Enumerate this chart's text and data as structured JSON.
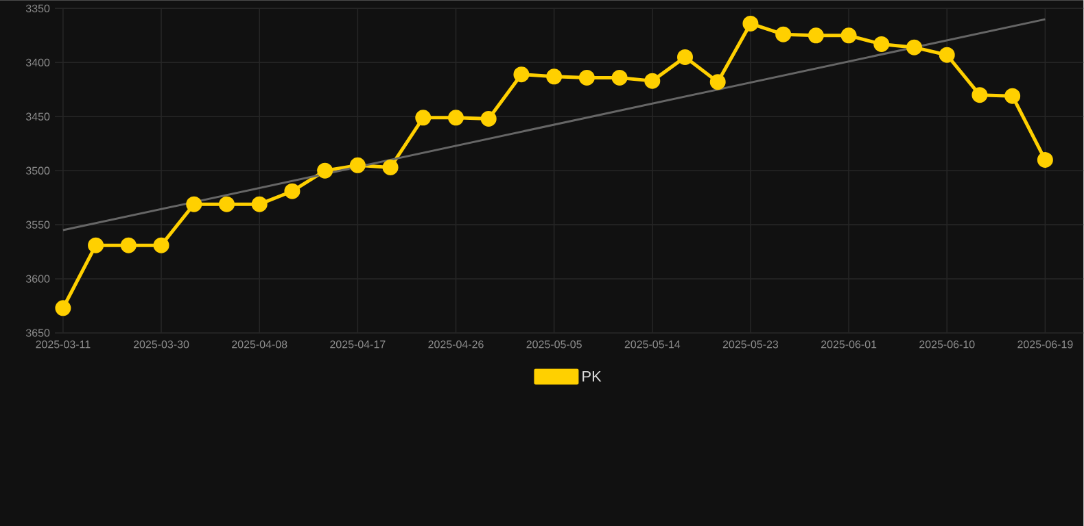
{
  "chart_data": {
    "type": "line",
    "categories": [
      "2025-03-11",
      null,
      null,
      "2025-03-30",
      null,
      null,
      "2025-04-08",
      null,
      null,
      "2025-04-17",
      null,
      null,
      "2025-04-26",
      null,
      null,
      "2025-05-05",
      null,
      null,
      "2025-05-14",
      null,
      null,
      "2025-05-23",
      null,
      null,
      "2025-06-01",
      null,
      null,
      "2025-06-10",
      null,
      null,
      "2025-06-19"
    ],
    "series": [
      {
        "name": "PK",
        "color": "#ffd000",
        "values": [
          3627,
          3569,
          3569,
          3569,
          3531,
          3531,
          3531,
          3519,
          3500,
          3495,
          3497,
          3451,
          3451,
          3452,
          3411,
          3413,
          3414,
          3414,
          3417,
          3395,
          3418,
          3364,
          3374,
          3375,
          3375,
          3383,
          3386,
          3393,
          3430,
          3431,
          3490
        ]
      },
      {
        "type": "line",
        "color": "#666666",
        "marker": "none",
        "values": [
          3555,
          null,
          null,
          null,
          null,
          null,
          null,
          null,
          null,
          null,
          null,
          null,
          null,
          null,
          null,
          null,
          null,
          null,
          null,
          null,
          null,
          null,
          null,
          null,
          null,
          null,
          null,
          null,
          null,
          null,
          3360
        ]
      }
    ],
    "ylim": [
      3650,
      3350
    ],
    "yticks": [
      3350,
      3400,
      3450,
      3500,
      3550,
      3600,
      3650
    ],
    "grid": true,
    "legend": "bottom",
    "marker": "circle",
    "line_style": "solid"
  }
}
